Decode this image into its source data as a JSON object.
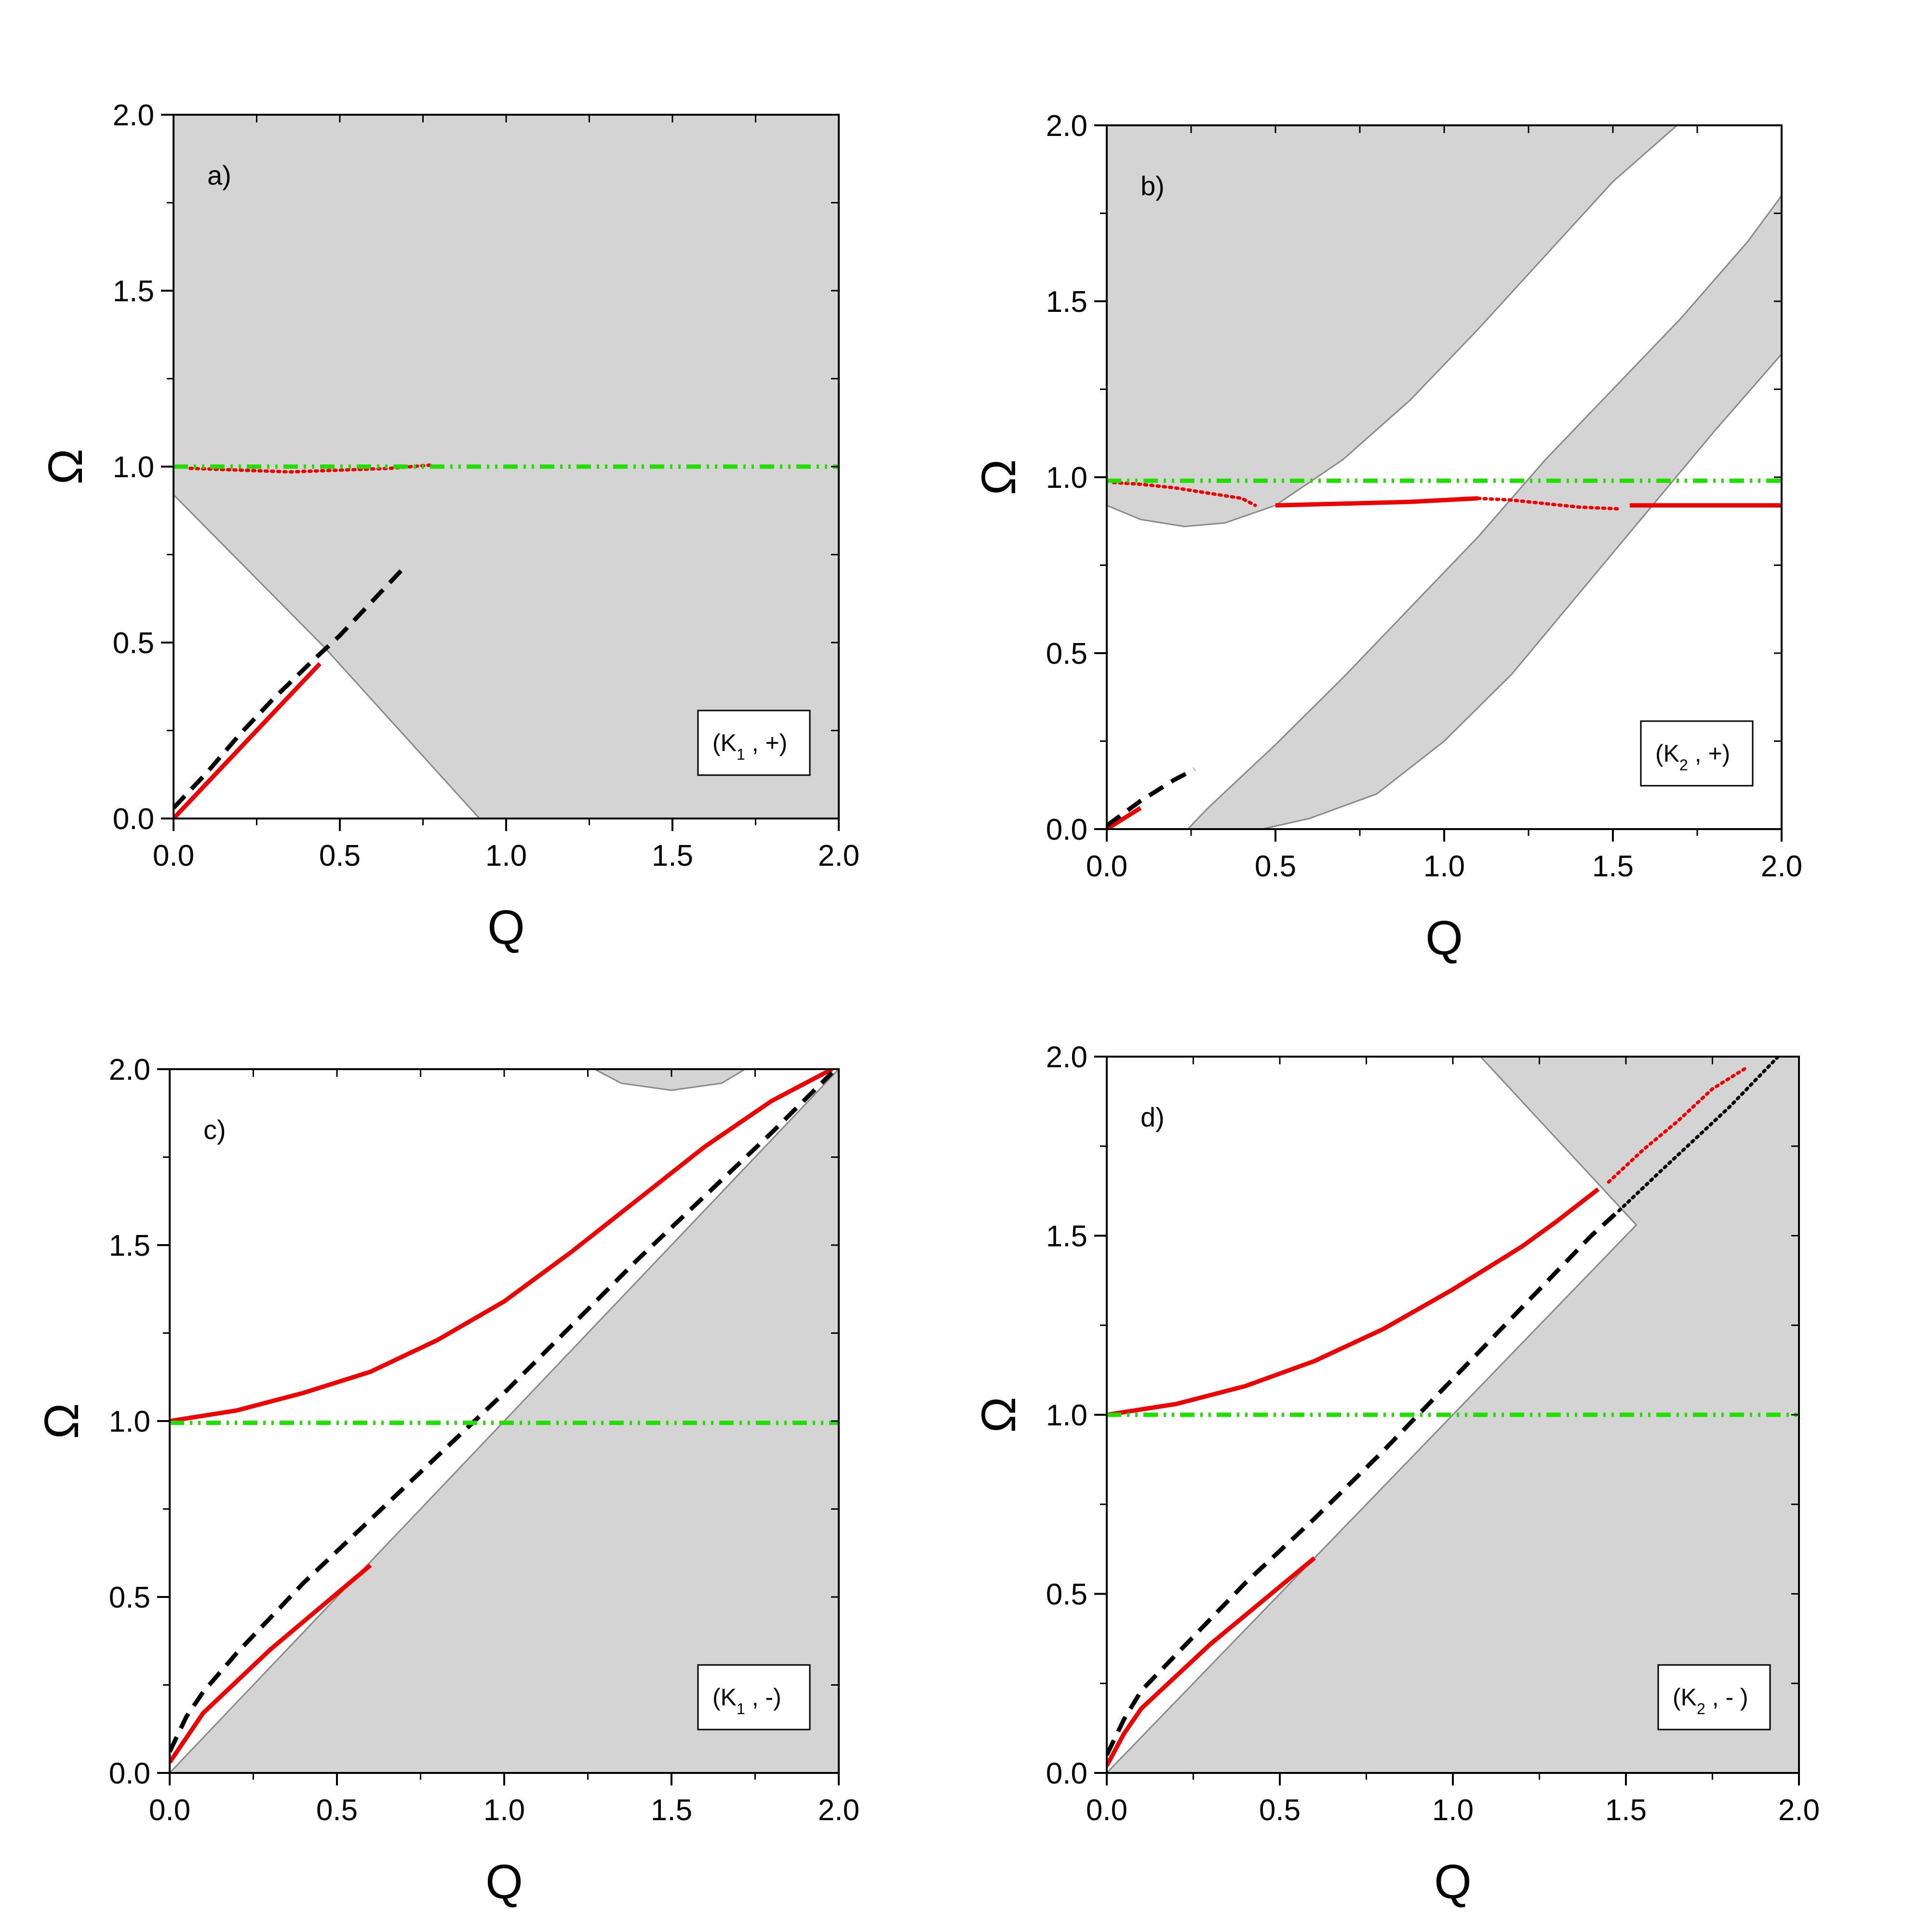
{
  "colors": {
    "shade": "#d4d4d4",
    "shade_edge": "#888888",
    "red": "#ee0000",
    "green": "#22dd00",
    "black": "#000000"
  },
  "chart_data": [
    {
      "type": "line",
      "panel": "a)",
      "legend": {
        "main": "(K",
        "sub": "1",
        "tail": " , +)"
      },
      "xlabel": "Q",
      "ylabel": "Ω",
      "xlim": [
        0,
        2
      ],
      "ylim": [
        0,
        2
      ],
      "xticks": [
        "0.0",
        "0.5",
        "1.0",
        "1.5",
        "2.0"
      ],
      "yticks": [
        "0.0",
        "0.5",
        "1.0",
        "1.5",
        "2.0"
      ],
      "regions": [
        [
          [
            0,
            0.92
          ],
          [
            0.45,
            0.49
          ],
          [
            0.92,
            0
          ],
          [
            2,
            0
          ],
          [
            2,
            1.07
          ],
          [
            2,
            2
          ],
          [
            0,
            2
          ]
        ]
      ],
      "series": [
        {
          "style": "solid",
          "color": "red",
          "points": [
            [
              0,
              0
            ],
            [
              0.1,
              0.1
            ],
            [
              0.2,
              0.2
            ],
            [
              0.3,
              0.3
            ],
            [
              0.44,
              0.44
            ]
          ]
        },
        {
          "style": "dotted",
          "color": "red",
          "points": [
            [
              0.05,
              0.995
            ],
            [
              0.2,
              0.99
            ],
            [
              0.35,
              0.985
            ],
            [
              0.5,
              0.99
            ],
            [
              0.65,
              0.995
            ],
            [
              0.78,
              1.005
            ]
          ]
        },
        {
          "style": "dashed",
          "color": "black",
          "points": [
            [
              0,
              0.03
            ],
            [
              0.1,
              0.13
            ],
            [
              0.2,
              0.24
            ],
            [
              0.3,
              0.34
            ],
            [
              0.42,
              0.45
            ],
            [
              0.5,
              0.52
            ],
            [
              0.6,
              0.62
            ],
            [
              0.69,
              0.71
            ]
          ]
        },
        {
          "style": "dashdot",
          "color": "green",
          "points": [
            [
              0,
              1.0
            ],
            [
              2,
              1.0
            ]
          ]
        }
      ]
    },
    {
      "type": "line",
      "panel": "b)",
      "legend": {
        "main": "(K",
        "sub": "2",
        "tail": " , +)"
      },
      "xlabel": "Q",
      "ylabel": "Ω",
      "xlim": [
        0,
        2
      ],
      "ylim": [
        0,
        2
      ],
      "xticks": [
        "0.0",
        "0.5",
        "1.0",
        "1.5",
        "2.0"
      ],
      "yticks": [
        "0.0",
        "0.5",
        "1.0",
        "1.5",
        "2.0"
      ],
      "regions": [
        [
          [
            0,
            0.92
          ],
          [
            0.1,
            0.88
          ],
          [
            0.23,
            0.86
          ],
          [
            0.35,
            0.87
          ],
          [
            0.5,
            0.92
          ],
          [
            0.7,
            1.05
          ],
          [
            0.9,
            1.22
          ],
          [
            1.1,
            1.42
          ],
          [
            1.3,
            1.63
          ],
          [
            1.5,
            1.84
          ],
          [
            1.69,
            2.0
          ],
          [
            0,
            2.0
          ]
        ],
        [
          [
            0.24,
            0
          ],
          [
            0.3,
            0.06
          ],
          [
            0.5,
            0.24
          ],
          [
            0.7,
            0.43
          ],
          [
            0.9,
            0.63
          ],
          [
            1.1,
            0.83
          ],
          [
            1.3,
            1.05
          ],
          [
            1.5,
            1.25
          ],
          [
            1.7,
            1.45
          ],
          [
            1.9,
            1.67
          ],
          [
            2.0,
            1.8
          ],
          [
            2.0,
            1.35
          ],
          [
            1.8,
            1.13
          ],
          [
            1.6,
            0.9
          ],
          [
            1.4,
            0.67
          ],
          [
            1.2,
            0.44
          ],
          [
            1.0,
            0.25
          ],
          [
            0.8,
            0.1
          ],
          [
            0.6,
            0.03
          ],
          [
            0.46,
            0
          ]
        ]
      ],
      "series": [
        {
          "style": "solid",
          "color": "red",
          "points": [
            [
              0,
              0
            ],
            [
              0.05,
              0.03
            ],
            [
              0.1,
              0.06
            ]
          ]
        },
        {
          "style": "dotted",
          "color": "red",
          "points": [
            [
              0.02,
              0.985
            ],
            [
              0.1,
              0.98
            ],
            [
              0.2,
              0.97
            ],
            [
              0.3,
              0.955
            ],
            [
              0.4,
              0.94
            ],
            [
              0.44,
              0.92
            ]
          ]
        },
        {
          "style": "solid",
          "color": "red",
          "points": [
            [
              0.5,
              0.92
            ],
            [
              0.7,
              0.925
            ],
            [
              0.9,
              0.93
            ],
            [
              1.1,
              0.94
            ]
          ]
        },
        {
          "style": "dotted",
          "color": "red",
          "points": [
            [
              1.1,
              0.94
            ],
            [
              1.2,
              0.935
            ],
            [
              1.3,
              0.925
            ],
            [
              1.4,
              0.915
            ],
            [
              1.52,
              0.91
            ]
          ]
        },
        {
          "style": "solid",
          "color": "red",
          "points": [
            [
              1.55,
              0.92
            ],
            [
              1.75,
              0.92
            ],
            [
              2.0,
              0.92
            ]
          ]
        },
        {
          "style": "dashed",
          "color": "black",
          "points": [
            [
              0,
              0.01
            ],
            [
              0.1,
              0.08
            ],
            [
              0.2,
              0.14
            ],
            [
              0.26,
              0.17
            ]
          ]
        },
        {
          "style": "dashdot",
          "color": "green",
          "points": [
            [
              0,
              0.99
            ],
            [
              2,
              0.99
            ]
          ]
        }
      ]
    },
    {
      "type": "line",
      "panel": "c)",
      "legend": {
        "main": "(K",
        "sub": "1",
        "tail": " , -)"
      },
      "xlabel": "Q",
      "ylabel": "Ω",
      "xlim": [
        0,
        2
      ],
      "ylim": [
        0,
        2
      ],
      "xticks": [
        "0.0",
        "0.5",
        "1.0",
        "1.5",
        "2.0"
      ],
      "yticks": [
        "0.0",
        "0.5",
        "1.0",
        "1.5",
        "2.0"
      ],
      "regions": [
        [
          [
            0,
            0
          ],
          [
            2,
            2
          ],
          [
            2,
            0
          ]
        ],
        [
          [
            1.27,
            2.0
          ],
          [
            1.35,
            1.96
          ],
          [
            1.5,
            1.94
          ],
          [
            1.65,
            1.96
          ],
          [
            1.72,
            2.0
          ]
        ]
      ],
      "series": [
        {
          "style": "solid",
          "color": "red",
          "points": [
            [
              0,
              1.0
            ],
            [
              0.2,
              1.03
            ],
            [
              0.4,
              1.08
            ],
            [
              0.6,
              1.14
            ],
            [
              0.8,
              1.23
            ],
            [
              1.0,
              1.34
            ],
            [
              1.2,
              1.48
            ],
            [
              1.4,
              1.63
            ],
            [
              1.6,
              1.78
            ],
            [
              1.8,
              1.91
            ],
            [
              1.98,
              2.0
            ]
          ]
        },
        {
          "style": "solid",
          "color": "red",
          "points": [
            [
              0,
              0.03
            ],
            [
              0.05,
              0.1
            ],
            [
              0.1,
              0.17
            ],
            [
              0.2,
              0.26
            ],
            [
              0.3,
              0.35
            ],
            [
              0.4,
              0.43
            ],
            [
              0.5,
              0.51
            ],
            [
              0.6,
              0.59
            ]
          ]
        },
        {
          "style": "dashed",
          "color": "black",
          "points": [
            [
              0,
              0.06
            ],
            [
              0.05,
              0.16
            ],
            [
              0.1,
              0.23
            ],
            [
              0.2,
              0.34
            ],
            [
              0.3,
              0.44
            ],
            [
              0.4,
              0.54
            ],
            [
              0.6,
              0.72
            ],
            [
              0.8,
              0.9
            ],
            [
              1.0,
              1.08
            ],
            [
              1.2,
              1.27
            ],
            [
              1.4,
              1.46
            ],
            [
              1.6,
              1.64
            ],
            [
              1.8,
              1.82
            ],
            [
              1.98,
              1.99
            ]
          ]
        },
        {
          "style": "dashdot",
          "color": "green",
          "points": [
            [
              0,
              0.995
            ],
            [
              2,
              0.995
            ]
          ]
        }
      ]
    },
    {
      "type": "line",
      "panel": "d)",
      "legend": {
        "main": "(K",
        "sub": "2",
        "tail": " , - )"
      },
      "xlabel": "Q",
      "ylabel": "Ω",
      "xlim": [
        0,
        2
      ],
      "ylim": [
        0,
        2
      ],
      "xticks": [
        "0.0",
        "0.5",
        "1.0",
        "1.5",
        "2.0"
      ],
      "yticks": [
        "0.0",
        "0.5",
        "1.0",
        "1.5",
        "2.0"
      ],
      "regions": [
        [
          [
            0,
            0
          ],
          [
            1.53,
            1.53
          ],
          [
            1.08,
            2.0
          ],
          [
            2,
            2
          ],
          [
            2,
            0
          ]
        ]
      ],
      "series": [
        {
          "style": "solid",
          "color": "red",
          "points": [
            [
              0,
              1.0
            ],
            [
              0.2,
              1.03
            ],
            [
              0.4,
              1.08
            ],
            [
              0.6,
              1.15
            ],
            [
              0.8,
              1.24
            ],
            [
              1.0,
              1.35
            ],
            [
              1.2,
              1.47
            ],
            [
              1.3,
              1.54
            ],
            [
              1.42,
              1.63
            ]
          ]
        },
        {
          "style": "dotted",
          "color": "red",
          "points": [
            [
              1.45,
              1.65
            ],
            [
              1.55,
              1.74
            ],
            [
              1.65,
              1.82
            ],
            [
              1.75,
              1.91
            ],
            [
              1.85,
              1.97
            ]
          ]
        },
        {
          "style": "solid",
          "color": "red",
          "points": [
            [
              0,
              0.02
            ],
            [
              0.05,
              0.11
            ],
            [
              0.1,
              0.18
            ],
            [
              0.2,
              0.27
            ],
            [
              0.3,
              0.36
            ],
            [
              0.4,
              0.44
            ],
            [
              0.5,
              0.52
            ],
            [
              0.6,
              0.6
            ]
          ]
        },
        {
          "style": "dashed",
          "color": "black",
          "points": [
            [
              0,
              0.05
            ],
            [
              0.05,
              0.15
            ],
            [
              0.1,
              0.23
            ],
            [
              0.2,
              0.33
            ],
            [
              0.3,
              0.43
            ],
            [
              0.4,
              0.53
            ],
            [
              0.6,
              0.71
            ],
            [
              0.8,
              0.9
            ],
            [
              1.0,
              1.1
            ],
            [
              1.2,
              1.3
            ],
            [
              1.4,
              1.5
            ],
            [
              1.48,
              1.57
            ]
          ]
        },
        {
          "style": "dotted",
          "color": "black",
          "points": [
            [
              1.48,
              1.57
            ],
            [
              1.6,
              1.68
            ],
            [
              1.7,
              1.77
            ],
            [
              1.8,
              1.86
            ],
            [
              1.9,
              1.96
            ],
            [
              1.94,
              2.0
            ]
          ]
        },
        {
          "style": "dashdot",
          "color": "green",
          "points": [
            [
              0,
              1.0
            ],
            [
              2,
              1.0
            ]
          ]
        }
      ]
    }
  ]
}
